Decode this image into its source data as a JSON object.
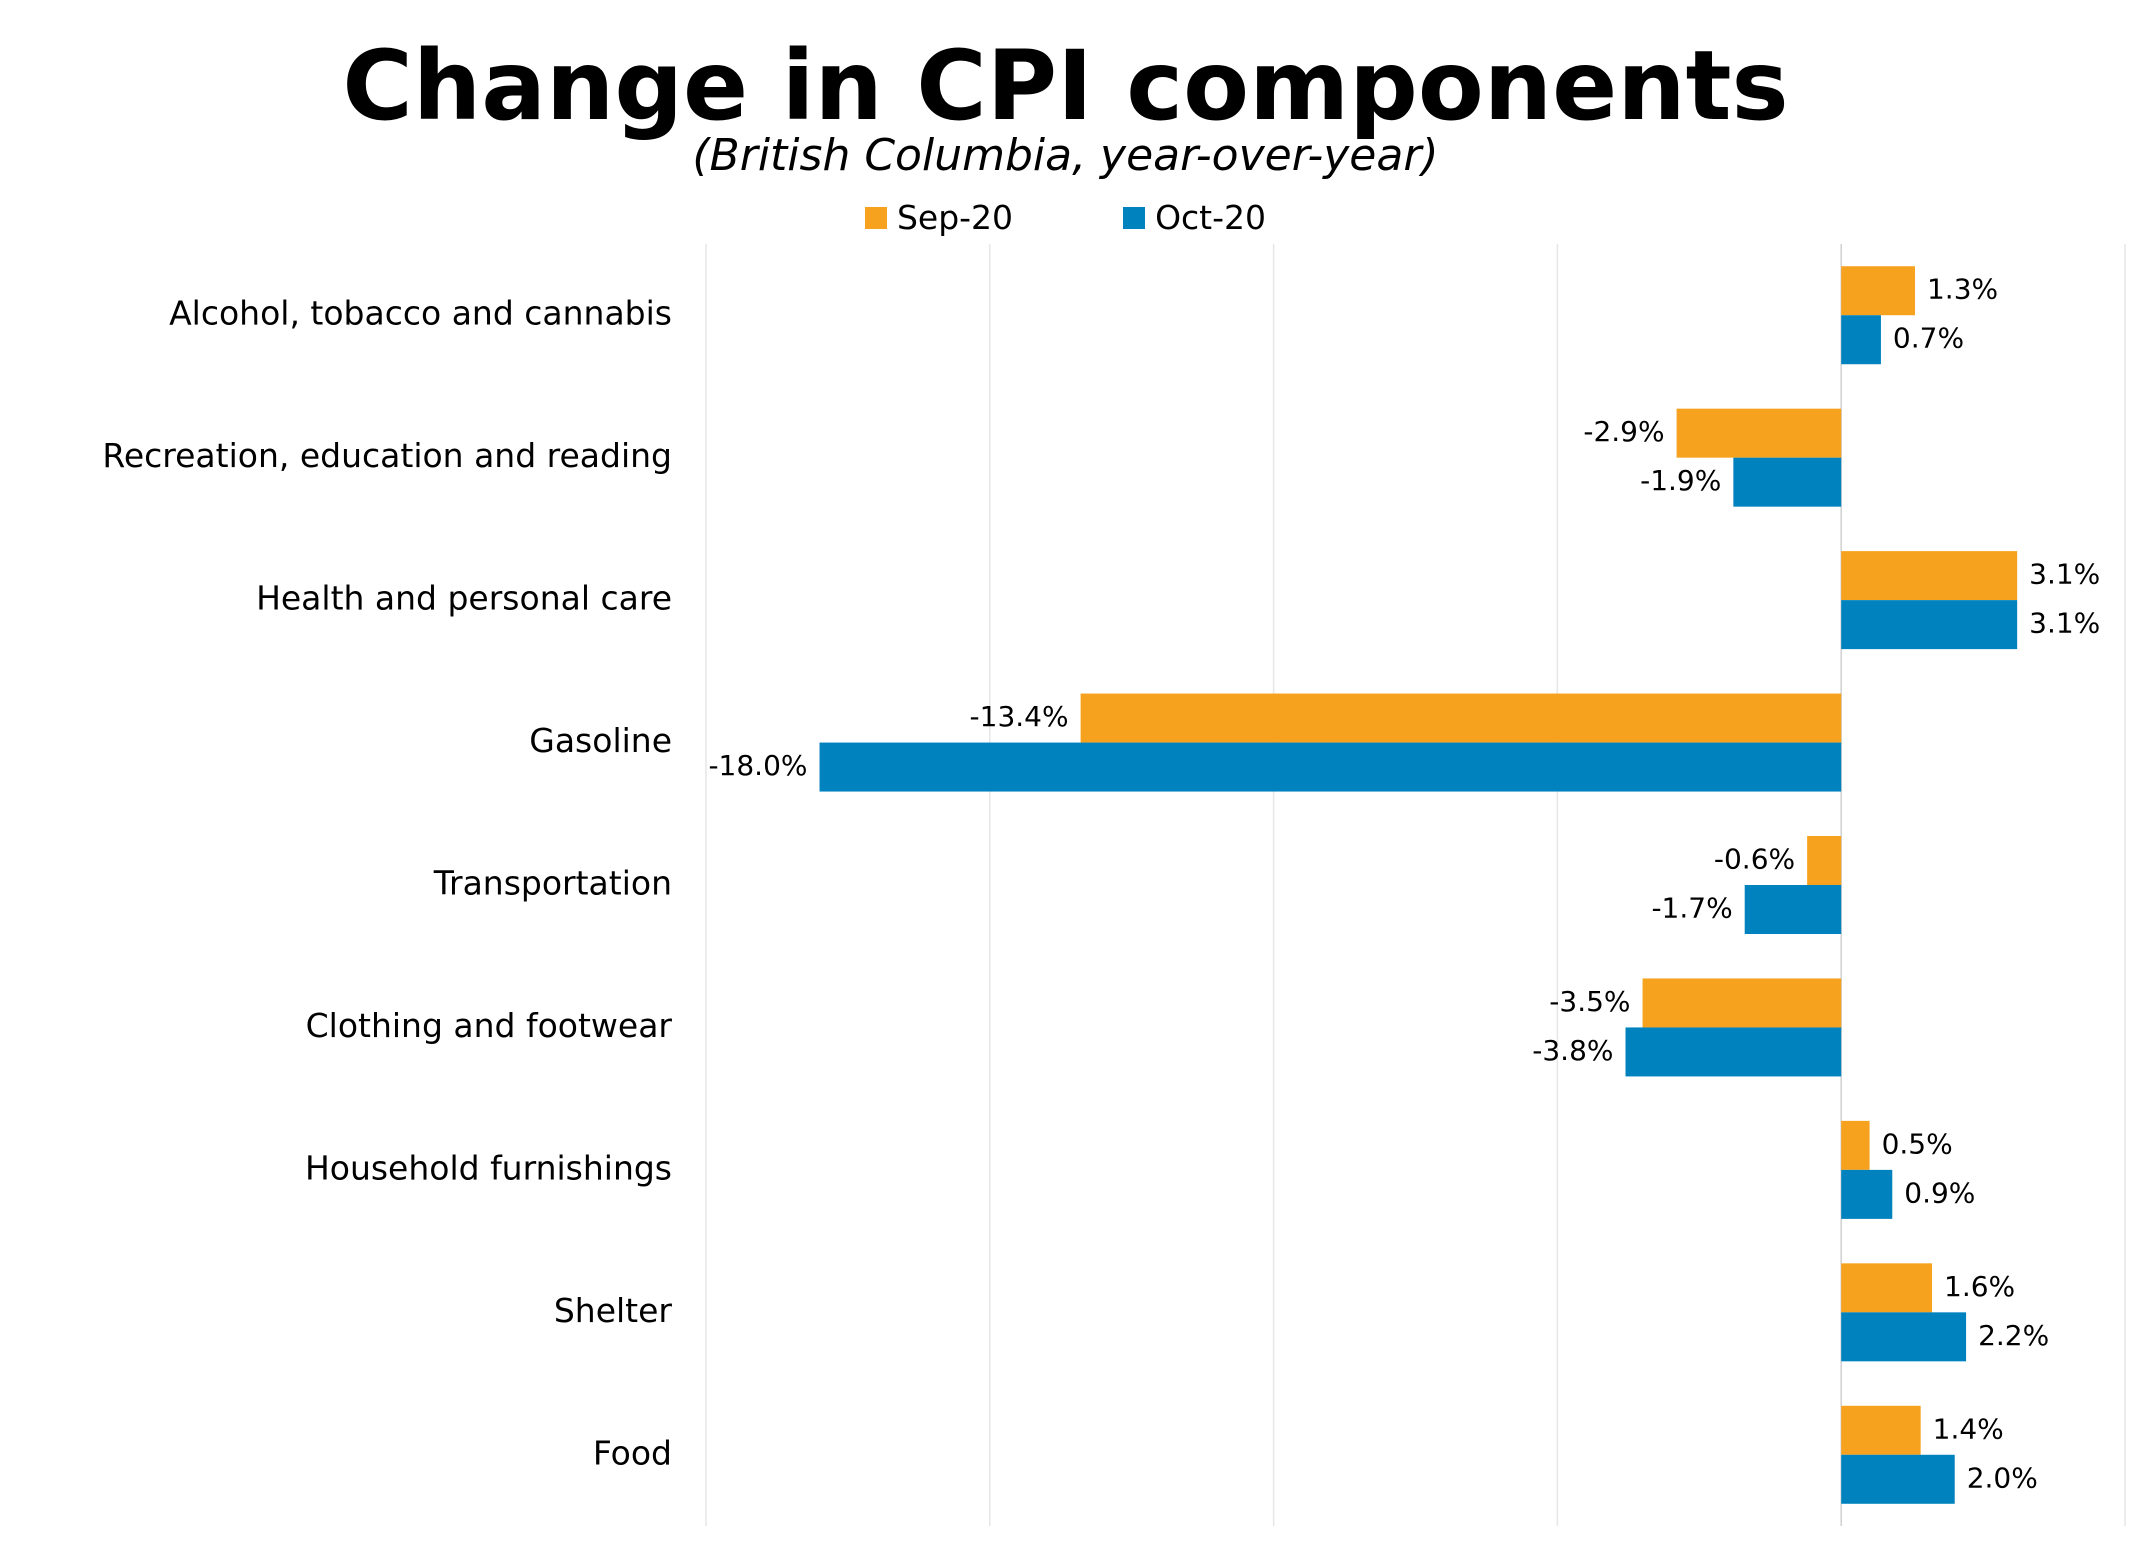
{
  "chart_data": {
    "type": "bar",
    "orientation": "horizontal",
    "title": "Change in CPI components",
    "subtitle": "(British Columbia, year-over-year)",
    "categories": [
      "Alcohol, tobacco and cannabis",
      "Recreation, education and reading",
      "Health and personal care",
      "Gasoline",
      "Transportation",
      "Clothing and footwear",
      "Household furnishings",
      "Shelter",
      "Food"
    ],
    "series": [
      {
        "name": "Sep-20",
        "color": "#F7A21E",
        "values": [
          1.3,
          -2.9,
          3.1,
          -13.4,
          -0.6,
          -3.5,
          0.5,
          1.6,
          1.4
        ],
        "labels": [
          "1.3%",
          "-2.9%",
          "3.1%",
          "-13.4%",
          "-0.6%",
          "-3.5%",
          "0.5%",
          "1.6%",
          "1.4%"
        ]
      },
      {
        "name": "Oct-20",
        "color": "#0082BE",
        "values": [
          0.7,
          -1.9,
          3.1,
          -18.0,
          -1.7,
          -3.8,
          0.9,
          2.2,
          2.0
        ],
        "labels": [
          "0.7%",
          "-1.9%",
          "3.1%",
          "-18.0%",
          "-1.7%",
          "-3.8%",
          "0.9%",
          "2.2%",
          "2.0%"
        ]
      }
    ],
    "xlim": [
      -20,
      5
    ],
    "xgrid_step": 5,
    "grid": true,
    "legend": "top-center"
  }
}
